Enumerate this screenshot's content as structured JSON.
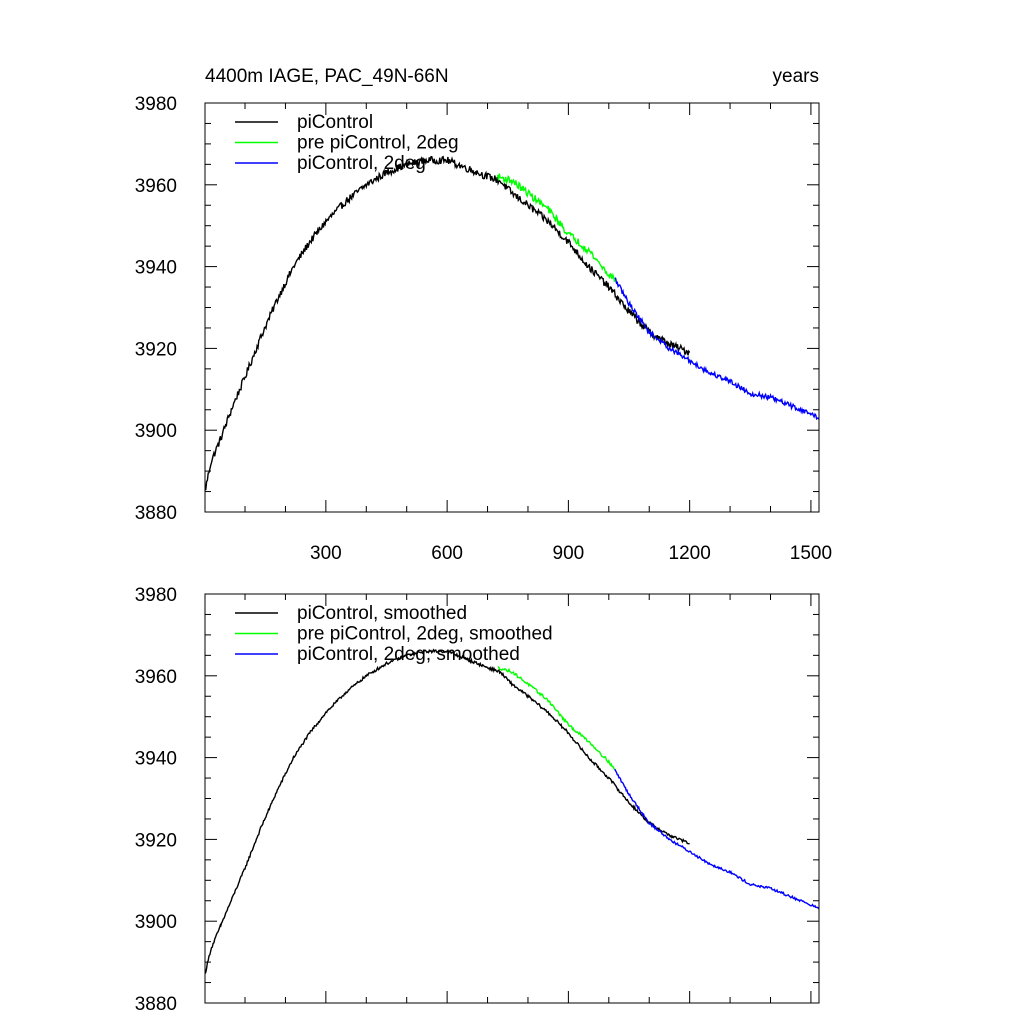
{
  "colors": {
    "series_black": "#000000",
    "series_green": "#00ff00",
    "series_blue": "#0000ff",
    "axis": "#000000"
  },
  "chart_data": [
    {
      "type": "line",
      "title": "4400m IAGE, PAC_49N-66N",
      "units": "years",
      "xlabel": "",
      "ylabel": "",
      "xlim": [
        1,
        1520
      ],
      "ylim": [
        3880,
        3980
      ],
      "x_ticks": [
        300,
        600,
        900,
        1200,
        1500
      ],
      "x_tick_labels": [
        "300",
        "600",
        "900",
        "1200",
        "1500"
      ],
      "y_ticks": [
        3880,
        3900,
        3920,
        3940,
        3960,
        3980
      ],
      "y_tick_labels": [
        "3880",
        "3900",
        "3920",
        "3940",
        "3960",
        "3980"
      ],
      "grid": false,
      "legend": "top-left",
      "series": [
        {
          "name": "piControl",
          "color": "#000000",
          "noise": 0.9,
          "x": [
            1,
            15,
            40,
            70,
            100,
            140,
            180,
            220,
            260,
            300,
            350,
            400,
            450,
            500,
            550,
            600,
            650,
            700,
            730,
            760,
            800,
            850,
            900,
            950,
            1000,
            1050,
            1100,
            1150,
            1200
          ],
          "values": [
            3885,
            3892,
            3898,
            3906,
            3913,
            3923,
            3932,
            3940,
            3946,
            3951,
            3956,
            3960,
            3963,
            3965,
            3966,
            3966,
            3964,
            3962,
            3961,
            3958,
            3955,
            3951,
            3946,
            3940,
            3935,
            3929,
            3924,
            3921,
            3919
          ]
        },
        {
          "name": "pre piControl, 2deg",
          "color": "#00ff00",
          "noise": 0.9,
          "x": [
            725,
            760,
            800,
            850,
            900,
            950,
            1000,
            1015
          ],
          "values": [
            3962,
            3961,
            3958,
            3954,
            3948,
            3944,
            3938,
            3937
          ]
        },
        {
          "name": "piControl, 2deg",
          "color": "#0000ff",
          "noise": 0.6,
          "x": [
            1015,
            1050,
            1100,
            1150,
            1200,
            1250,
            1300,
            1350,
            1400,
            1450,
            1500,
            1520
          ],
          "values": [
            3937,
            3931,
            3924,
            3920,
            3917,
            3914,
            3912,
            3909,
            3908,
            3906,
            3904,
            3903
          ]
        }
      ]
    },
    {
      "type": "line",
      "title": "",
      "xlabel": "",
      "ylabel": "",
      "xlim": [
        1,
        1520
      ],
      "ylim": [
        3880,
        3980
      ],
      "x_ticks": [
        300,
        600,
        900,
        1200,
        1500
      ],
      "y_ticks": [
        3880,
        3900,
        3920,
        3940,
        3960,
        3980
      ],
      "y_tick_labels": [
        "3880",
        "3900",
        "3920",
        "3940",
        "3960",
        "3980"
      ],
      "grid": false,
      "legend": "top-left",
      "series": [
        {
          "name": "piControl, smoothed",
          "color": "#000000",
          "noise": 0.35,
          "x": [
            1,
            15,
            40,
            70,
            100,
            140,
            180,
            220,
            260,
            300,
            350,
            400,
            450,
            500,
            550,
            600,
            650,
            700,
            730,
            760,
            800,
            850,
            900,
            950,
            1000,
            1050,
            1100,
            1150,
            1200
          ],
          "values": [
            3887,
            3893,
            3899,
            3906,
            3913,
            3923,
            3932,
            3940,
            3946,
            3951,
            3956,
            3960,
            3963,
            3965,
            3966,
            3966,
            3964,
            3962,
            3961,
            3958,
            3955,
            3951,
            3946,
            3940,
            3935,
            3929,
            3924,
            3921,
            3919
          ]
        },
        {
          "name": "pre piControl, 2deg, smoothed",
          "color": "#00ff00",
          "noise": 0.35,
          "x": [
            725,
            760,
            800,
            850,
            900,
            950,
            1000,
            1015
          ],
          "values": [
            3962,
            3961,
            3958,
            3954,
            3948,
            3944,
            3939,
            3937
          ]
        },
        {
          "name": "piControl, 2deg, smoothed",
          "color": "#0000ff",
          "noise": 0.3,
          "x": [
            1015,
            1050,
            1100,
            1150,
            1200,
            1250,
            1300,
            1350,
            1400,
            1450,
            1500,
            1520
          ],
          "values": [
            3937,
            3931,
            3924,
            3920,
            3917,
            3914,
            3912,
            3909,
            3908,
            3906,
            3904,
            3903
          ]
        }
      ]
    }
  ]
}
